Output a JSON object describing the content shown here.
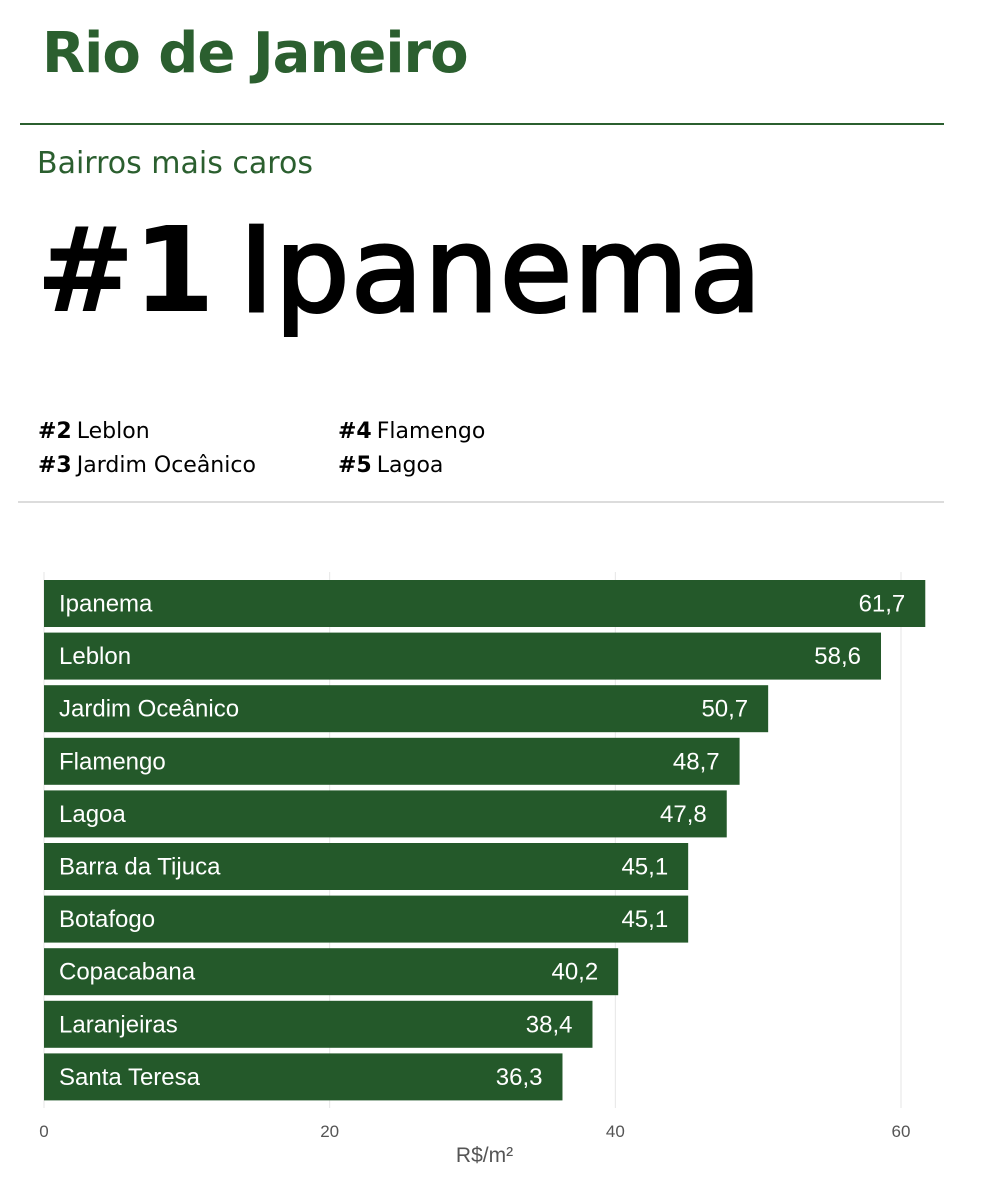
{
  "header": {
    "title": "Rio de Janeiro",
    "subtitle": "Bairros mais caros",
    "top_rank": "#1",
    "top_name": "Ipanema"
  },
  "ranking": [
    {
      "rank": "#2",
      "name": "Leblon"
    },
    {
      "rank": "#3",
      "name": "Jardim Oceânico"
    },
    {
      "rank": "#4",
      "name": "Flamengo"
    },
    {
      "rank": "#5",
      "name": "Lagoa"
    }
  ],
  "colors": {
    "bar": "#24592a",
    "accent": "#2b5f2f",
    "grid": "#e6e6e6"
  },
  "chart_data": {
    "type": "bar",
    "orientation": "horizontal",
    "categories": [
      "Ipanema",
      "Leblon",
      "Jardim Oceânico",
      "Flamengo",
      "Lagoa",
      "Barra da Tijuca",
      "Botafogo",
      "Copacabana",
      "Laranjeiras",
      "Santa Teresa"
    ],
    "values": [
      61.7,
      58.6,
      50.7,
      48.7,
      47.8,
      45.1,
      45.1,
      40.2,
      38.4,
      36.3
    ],
    "value_labels": [
      "61,7",
      "58,6",
      "50,7",
      "48,7",
      "47,8",
      "45,1",
      "45,1",
      "40,2",
      "38,4",
      "36,3"
    ],
    "xlim": [
      0,
      60
    ],
    "xticks": [
      0,
      20,
      40,
      60
    ],
    "xlabel": "R$/m²",
    "grid": true
  }
}
